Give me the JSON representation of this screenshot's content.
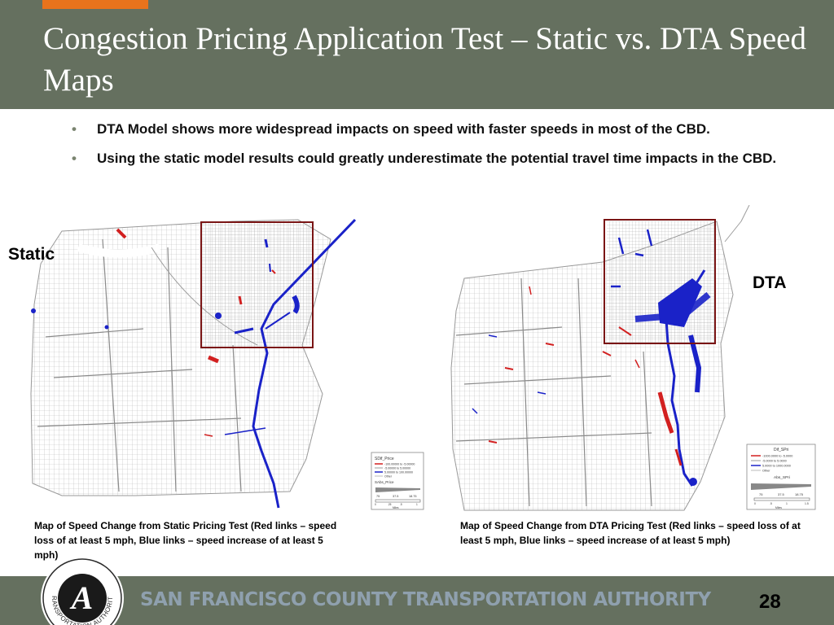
{
  "slide": {
    "title": "Congestion Pricing Application Test – Static vs. DTA Speed Maps",
    "bullets": [
      "DTA Model shows more widespread impacts on speed with faster speeds in most of the CBD.",
      "Using the static model results could greatly underestimate the potential travel time impacts in the CBD."
    ],
    "page_number": "28"
  },
  "static_map": {
    "label": "Static",
    "legend_title": "SDif_Price",
    "legend_items": [
      "-100.00000 to -5.00000",
      "-5.00000 to 5.00000",
      "5.00000 to 100.00000",
      "Other"
    ],
    "legend_subtitle": "SAbs_Price",
    "scale_labels": [
      "75",
      "37.5",
      "18.75"
    ],
    "scale_labels_bottom": [
      "0",
      ".25",
      ".5",
      "1"
    ],
    "scale_unit": "Miles",
    "caption": "Map of Speed Change from Static Pricing Test (Red links – speed loss of at least 5 mph, Blue links – speed increase of at least 5 mph)"
  },
  "dta_map": {
    "label": "DTA",
    "legend_title": "Dif_SPri",
    "legend_items": [
      "-1000.0000 to -5.0000",
      "-5.0000 to 5.0000",
      "5.0000 to 1000.0000",
      "Other"
    ],
    "legend_subtitle": "Abs_SPri",
    "scale_labels": [
      "75",
      "37.5",
      "18.75"
    ],
    "scale_labels_bottom": [
      "0",
      ".5",
      "1",
      "1.5"
    ],
    "scale_unit": "Miles",
    "caption": "Map of Speed Change from DTA Pricing Test (Red links – speed loss of at least 5 mph, Blue links – speed increase of at least 5 mph)"
  },
  "footer": {
    "org_name": "SAN FRANCISCO COUNTY TRANSPORTATION AUTHORITY",
    "logo_text": "TRANSPORTATION AUTHORITY",
    "logo_mark": "A"
  },
  "colors": {
    "header_bg": "#65705f",
    "accent": "#e8731c",
    "footer_text": "#8fa0ae",
    "speed_loss": "#d22020",
    "speed_gain": "#1a22c8",
    "focus_box": "#7a1515"
  }
}
